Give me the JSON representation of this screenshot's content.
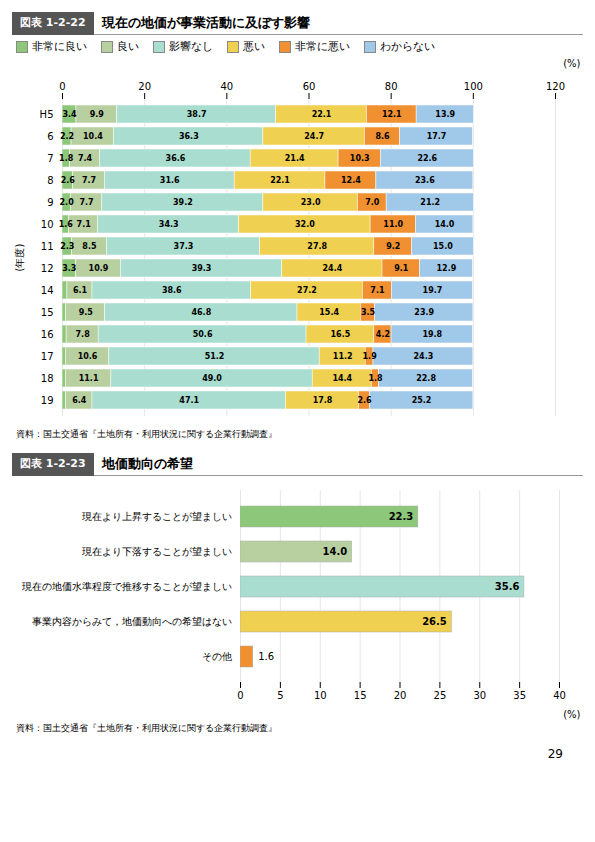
{
  "page_number": "29",
  "chart_data": [
    {
      "type": "bar",
      "title": "図表 1-2-22",
      "subtitle": "現在の地価が事業活動に及ぼす影響",
      "orientation": "horizontal",
      "stacked": true,
      "categories": [
        "H5",
        "6",
        "7",
        "8",
        "9",
        "10",
        "11",
        "12",
        "14",
        "15",
        "16",
        "17",
        "18",
        "19"
      ],
      "series": [
        {
          "name": "非常に良い",
          "color": "#8dc87a",
          "values": [
            3.4,
            2.2,
            1.8,
            2.6,
            2.0,
            1.6,
            2.3,
            3.3,
            1.2,
            0.9,
            1.0,
            0.8,
            0.8,
            0.9
          ],
          "value_labels": [
            "3.4",
            "2.2",
            "1.8",
            "2.6",
            "2.0",
            "1.6",
            "2.3",
            "3.3",
            null,
            null,
            null,
            null,
            null,
            null
          ]
        },
        {
          "name": "良い",
          "color": "#b8cfa0",
          "values": [
            9.9,
            10.4,
            7.4,
            7.7,
            7.7,
            7.1,
            8.5,
            10.9,
            6.1,
            9.5,
            7.8,
            10.6,
            11.1,
            6.4
          ],
          "value_labels": [
            "9.9",
            "10.4",
            "7.4",
            "7.7",
            "7.7",
            "7.1",
            "8.5",
            "10.9",
            "6.1",
            "9.5",
            "7.8",
            "10.6",
            "11.1",
            "6.4"
          ]
        },
        {
          "name": "影響なし",
          "color": "#a8ddd0",
          "values": [
            38.7,
            36.3,
            36.6,
            31.6,
            39.2,
            34.3,
            37.3,
            39.3,
            38.6,
            46.8,
            50.6,
            51.2,
            49.0,
            47.1
          ],
          "value_labels": [
            "38.7",
            "36.3",
            "36.6",
            "31.6",
            "39.2",
            "34.3",
            "37.3",
            "39.3",
            "38.6",
            "46.8",
            "50.6",
            "51.2",
            "49.0",
            "47.1"
          ]
        },
        {
          "name": "悪い",
          "color": "#f0d050",
          "values": [
            22.1,
            24.7,
            21.4,
            22.1,
            23.0,
            32.0,
            27.8,
            24.4,
            27.2,
            15.4,
            16.5,
            11.2,
            14.4,
            17.8
          ],
          "value_labels": [
            "22.1",
            "24.7",
            "21.4",
            "22.1",
            "23.0",
            "32.0",
            "27.8",
            "24.4",
            "27.2",
            "15.4",
            "16.5",
            "11.2",
            "14.4",
            "17.8"
          ]
        },
        {
          "name": "非常に悪い",
          "color": "#f09030",
          "values": [
            12.1,
            8.6,
            10.3,
            12.4,
            7.0,
            11.0,
            9.2,
            9.1,
            7.1,
            3.5,
            4.2,
            1.9,
            1.8,
            2.6
          ],
          "value_labels": [
            "12.1",
            "8.6",
            "10.3",
            "12.4",
            "7.0",
            "11.0",
            "9.2",
            "9.1",
            "7.1",
            "3.5",
            "4.2",
            "1.9",
            "1.8",
            "2.6"
          ]
        },
        {
          "name": "わからない",
          "color": "#a0c8e8",
          "values": [
            13.9,
            17.7,
            22.6,
            23.6,
            21.2,
            14.0,
            15.0,
            12.9,
            19.7,
            23.9,
            19.8,
            24.3,
            22.8,
            25.2
          ],
          "value_labels": [
            "13.9",
            "17.7",
            "22.6",
            "23.6",
            "21.2",
            "14.0",
            "15.0",
            "12.9",
            "19.7",
            "23.9",
            "19.8",
            "24.3",
            "22.8",
            "25.2"
          ]
        }
      ],
      "xlim": [
        0,
        120
      ],
      "xticks": [
        0,
        20,
        40,
        60,
        80,
        100,
        120
      ],
      "xlabel": "(%)",
      "ylabel": "(年度)",
      "grid": true,
      "legend": "top",
      "data_labels": true,
      "source": "資料：国土交通省『土地所有・利用状況に関する企業行動調査』"
    },
    {
      "type": "bar",
      "title": "図表 1-2-23",
      "subtitle": "地価動向の希望",
      "orientation": "horizontal",
      "categories": [
        "現在より上昇することが望ましい",
        "現在より下落することが望ましい",
        "現在の地価水準程度で推移することが望ましい",
        "事業内容からみて，地価動向への希望はない",
        "その他"
      ],
      "values": [
        22.3,
        14.0,
        35.6,
        26.5,
        1.6
      ],
      "value_labels": [
        "22.3",
        "14.0",
        "35.6",
        "26.5",
        "1.6"
      ],
      "colors": [
        "#8dc87a",
        "#b8cfa0",
        "#a8ddd0",
        "#f0d050",
        "#f09030"
      ],
      "xlim": [
        0,
        40
      ],
      "xticks": [
        0,
        5,
        10,
        15,
        20,
        25,
        30,
        35,
        40
      ],
      "xlabel": "(%)",
      "grid": true,
      "data_labels": true,
      "source": "資料：国土交通省『土地所有・利用状況に関する企業行動調査』"
    }
  ]
}
